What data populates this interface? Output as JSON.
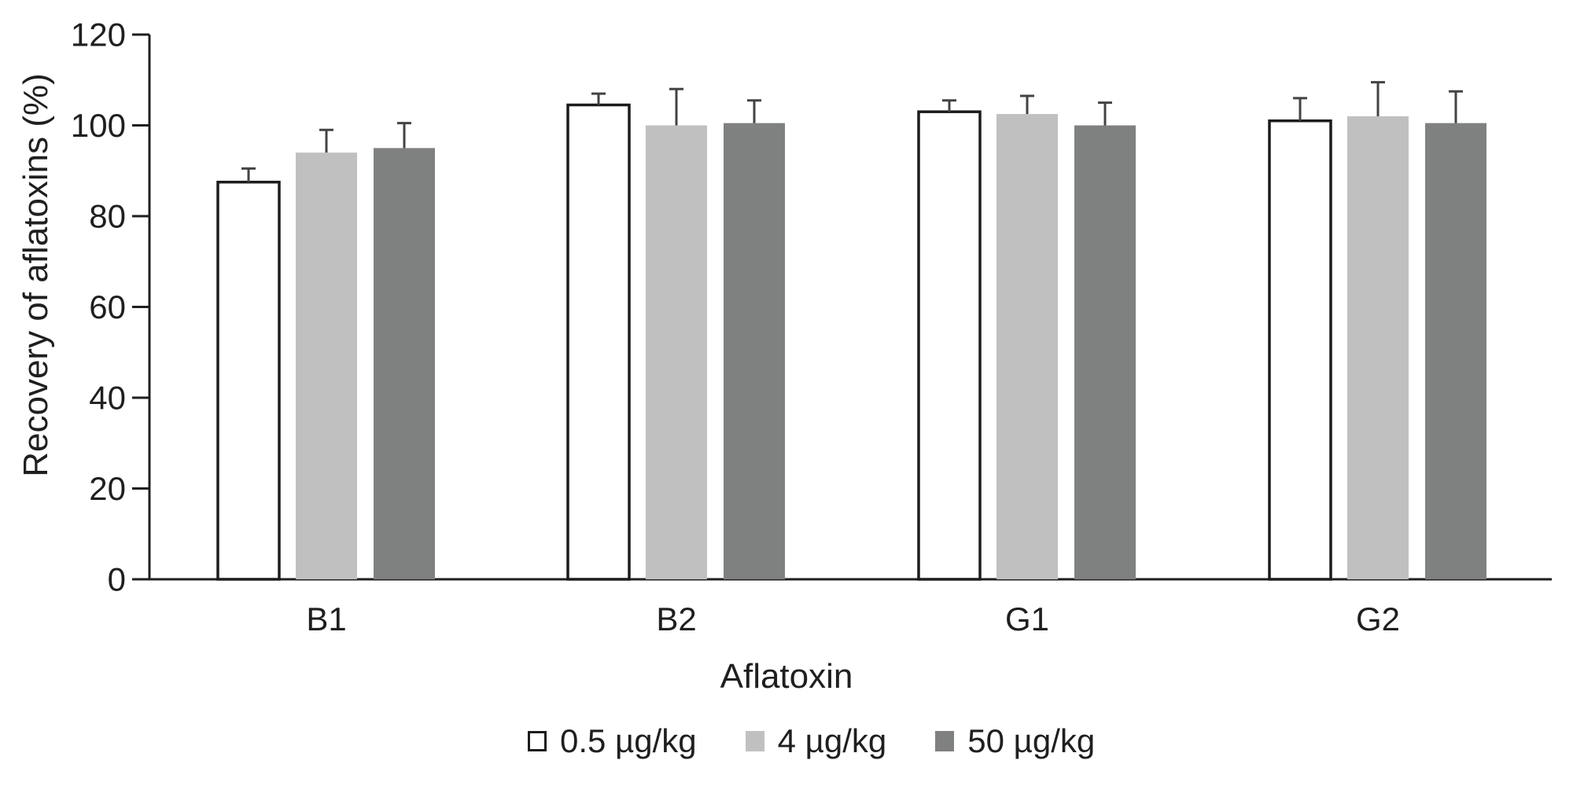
{
  "chart_data": {
    "type": "bar",
    "title": "",
    "categories": [
      "B1",
      "B2",
      "G1",
      "G2"
    ],
    "series": [
      {
        "name": "0.5 µg/kg",
        "fill": "#ffffff",
        "outline": "#1c1c1c",
        "values": [
          87.5,
          104.5,
          103,
          101
        ],
        "errors_plus": [
          3,
          2.5,
          2.5,
          5
        ]
      },
      {
        "name": "4 µg/kg",
        "fill": "#c1c0c0",
        "outline": null,
        "values": [
          94,
          100,
          102.5,
          102
        ],
        "errors_plus": [
          5,
          8,
          4,
          7.5
        ]
      },
      {
        "name": "50 µg/kg",
        "fill": "#7f8080",
        "outline": null,
        "values": [
          95,
          100.5,
          100,
          100.5
        ],
        "errors_plus": [
          5.5,
          5,
          5,
          7
        ]
      }
    ],
    "xlabel": "Aflatoxin",
    "ylabel": "Recovery of aflatoxins (%)",
    "ylim": [
      0,
      120
    ],
    "yticks": [
      0,
      20,
      40,
      60,
      80,
      100,
      120
    ],
    "grid": false,
    "legend_position": "bottom",
    "error_bars": "upper-only",
    "colors": {
      "axis": "#1f1f1f",
      "text": "#1f1f1f",
      "error_bar": "#434343",
      "bar_white": "#ffffff",
      "bar_light_gray": "#c1c0c0",
      "bar_dark_gray": "#7f8080"
    }
  }
}
